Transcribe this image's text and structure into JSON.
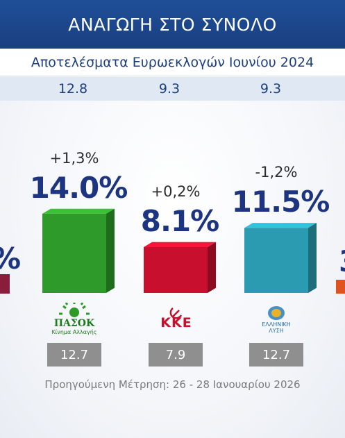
{
  "header": {
    "title": "ΑΝΑΓΩΓΗ ΣΤΟ ΣΥΝΟΛΟ",
    "subtitle": "Αποτελέσματα Ευρωεκλογών Ιουνίου 2024"
  },
  "euro_results": [
    "12.8",
    "9.3",
    "9.3"
  ],
  "chart_data": {
    "type": "bar",
    "title": "ΑΝΑΓΩΓΗ ΣΤΟ ΣΥΝΟΛΟ",
    "categories": [
      "ΠΑΣΟΚ",
      "ΚΚΕ",
      "Ελληνική Λύση"
    ],
    "values": [
      14.0,
      8.1,
      11.5
    ],
    "value_labels": [
      "14.0%",
      "8.1%",
      "11.5%"
    ],
    "changes": [
      "+1,3%",
      "+0,2%",
      "-1,2%"
    ],
    "previous_values": [
      12.7,
      7.9,
      12.7
    ],
    "previous_labels": [
      "12.7",
      "7.9",
      "12.7"
    ],
    "euro_2024_values": [
      12.8,
      9.3,
      9.3
    ],
    "colors": [
      "#2e9a2a",
      "#c8102e",
      "#2a9bb0"
    ],
    "ylim": [
      0,
      20
    ]
  },
  "parties": [
    {
      "logo_text": "ΠΑΣΟΚ",
      "logo_sub": "Κίνημα Αλλαγής",
      "logo_icon": "pasok-sun-logo"
    },
    {
      "logo_text": "ΚΚΕ",
      "logo_icon": "kke-hammer-sickle-logo"
    },
    {
      "logo_text": "ΕΛΛΗΝΙΚΗ",
      "logo_sub": "ΛΥΣΗ",
      "logo_icon": "elliniki-lysi-logo"
    }
  ],
  "edge_labels": {
    "left": "%",
    "right": "3"
  },
  "footer": {
    "previous_measurement": "Προηγούμενη Μέτρηση: 26 - 28 Ιανουαρίου 2026"
  }
}
